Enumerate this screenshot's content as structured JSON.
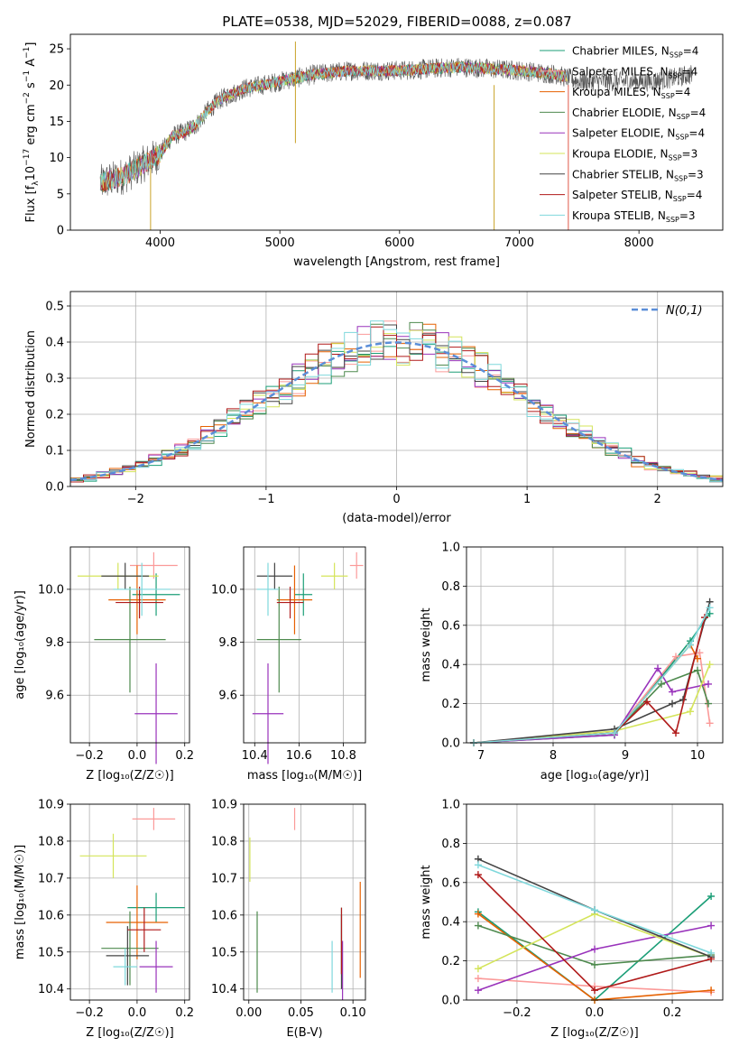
{
  "figure_title": "PLATE=0538, MJD=52029, FIBERID=0088, z=0.087",
  "series": [
    {
      "name": "Chabrier MILES",
      "nssp": "4",
      "color": "#1b9e77"
    },
    {
      "name": "Salpeter MILES",
      "nssp": "4",
      "color": "#fb9a99"
    },
    {
      "name": "Kroupa MILES",
      "nssp": "4",
      "color": "#e66101"
    },
    {
      "name": "Chabrier ELODIE",
      "nssp": "4",
      "color": "#4e8a4e"
    },
    {
      "name": "Salpeter ELODIE",
      "nssp": "4",
      "color": "#9933bb"
    },
    {
      "name": "Kroupa ELODIE",
      "nssp": "3",
      "color": "#d4e45a"
    },
    {
      "name": "Chabrier STELIB",
      "nssp": "3",
      "color": "#444444"
    },
    {
      "name": "Salpeter STELIB",
      "nssp": "4",
      "color": "#b01a1a"
    },
    {
      "name": "Kroupa STELIB",
      "nssp": "3",
      "color": "#7fd8dc"
    }
  ],
  "chart_data": [
    {
      "type": "line",
      "id": "spectrum",
      "xlabel": "wavelength [Angstrom, rest frame]",
      "ylabel": "Flux [f_λ10^-17 erg cm^-2 s^-1 A^-1]",
      "xlim": [
        3250,
        8700
      ],
      "ylim": [
        0,
        27
      ],
      "xticks": [
        4000,
        5000,
        6000,
        7000,
        8000
      ],
      "yticks": [
        0,
        5,
        10,
        15,
        20,
        25
      ],
      "grid": false,
      "legend": "right",
      "continuum": {
        "x": [
          3500,
          3600,
          3700,
          3800,
          3900,
          4000,
          4100,
          4200,
          4300,
          4400,
          4500,
          4700,
          5000,
          5300,
          5600,
          6000,
          6500,
          7000,
          7300,
          7500,
          7800,
          8100,
          8300,
          8450
        ],
        "y": [
          6.5,
          7.0,
          7.5,
          8.5,
          9.5,
          10.5,
          13.0,
          13.5,
          14.5,
          16.5,
          18.0,
          19.5,
          20.5,
          21.5,
          22.0,
          22.0,
          22.5,
          22.0,
          21.5,
          20.5,
          20.5,
          20.5,
          21.0,
          21.5
        ]
      }
    },
    {
      "type": "histogram",
      "id": "residuals",
      "xlabel": "(data-model)/error",
      "ylabel": "Normed distribution",
      "xlim": [
        -2.5,
        2.5
      ],
      "ylim": [
        0,
        0.54
      ],
      "xticks": [
        -2,
        -1,
        0,
        1,
        2
      ],
      "yticks": [
        0.0,
        0.1,
        0.2,
        0.3,
        0.4,
        0.5
      ],
      "grid": true,
      "reference_label": "N(0,1)",
      "reference_color": "#5b8ed8"
    },
    {
      "type": "scatter",
      "id": "age-vs-z",
      "xlabel": "Z [log10(Z/Z⊙)]",
      "ylabel": "age [log10(age/yr)]",
      "xlim": [
        -0.28,
        0.22
      ],
      "ylim": [
        9.42,
        10.16
      ],
      "xticks": [
        -0.2,
        0.0,
        0.2
      ],
      "yticks": [
        9.6,
        9.8,
        10.0
      ],
      "grid": true,
      "points": [
        {
          "series": 0,
          "x": 0.08,
          "y": 9.98,
          "xerr": 0.1,
          "yerr": 0.08
        },
        {
          "series": 1,
          "x": 0.07,
          "y": 10.09,
          "xerr": 0.1,
          "yerr": 0.05
        },
        {
          "series": 2,
          "x": 0.0,
          "y": 9.96,
          "xerr": 0.12,
          "yerr": 0.13
        },
        {
          "series": 3,
          "x": -0.03,
          "y": 9.81,
          "xerr": 0.15,
          "yerr": 0.2
        },
        {
          "series": 4,
          "x": 0.08,
          "y": 9.53,
          "xerr": 0.09,
          "yerr": 0.19
        },
        {
          "series": 5,
          "x": -0.08,
          "y": 10.05,
          "xerr": 0.17,
          "yerr": 0.05
        },
        {
          "series": 6,
          "x": -0.05,
          "y": 10.05,
          "xerr": 0.1,
          "yerr": 0.05
        },
        {
          "series": 7,
          "x": 0.01,
          "y": 9.95,
          "xerr": 0.1,
          "yerr": 0.06
        },
        {
          "series": 8,
          "x": 0.02,
          "y": 10.0,
          "xerr": 0.12,
          "yerr": 0.1
        }
      ]
    },
    {
      "type": "scatter",
      "id": "age-vs-mass",
      "xlabel": "mass [log10(M/M⊙)]",
      "ylabel": "",
      "xlim": [
        10.35,
        10.9
      ],
      "ylim": [
        9.42,
        10.16
      ],
      "xticks": [
        10.4,
        10.6,
        10.8
      ],
      "yticks": [
        9.6,
        9.8,
        10.0
      ],
      "grid": true,
      "points": [
        {
          "series": 0,
          "x": 10.62,
          "y": 9.98,
          "xerr": 0.04,
          "yerr": 0.08
        },
        {
          "series": 1,
          "x": 10.86,
          "y": 10.09,
          "xerr": 0.03,
          "yerr": 0.05
        },
        {
          "series": 2,
          "x": 10.58,
          "y": 9.96,
          "xerr": 0.08,
          "yerr": 0.13
        },
        {
          "series": 3,
          "x": 10.51,
          "y": 9.81,
          "xerr": 0.1,
          "yerr": 0.2
        },
        {
          "series": 4,
          "x": 10.46,
          "y": 9.53,
          "xerr": 0.07,
          "yerr": 0.19
        },
        {
          "series": 5,
          "x": 10.76,
          "y": 10.05,
          "xerr": 0.06,
          "yerr": 0.05
        },
        {
          "series": 6,
          "x": 10.49,
          "y": 10.05,
          "xerr": 0.08,
          "yerr": 0.05
        },
        {
          "series": 7,
          "x": 10.56,
          "y": 9.95,
          "xerr": 0.06,
          "yerr": 0.06
        },
        {
          "series": 8,
          "x": 10.46,
          "y": 10.0,
          "xerr": 0.05,
          "yerr": 0.1
        }
      ]
    },
    {
      "type": "line",
      "id": "weight-vs-age",
      "xlabel": "age [log10(age/yr)]",
      "ylabel": "mass weight",
      "xlim": [
        6.8,
        10.35
      ],
      "ylim": [
        0,
        1.0
      ],
      "xticks": [
        7,
        8,
        9,
        10
      ],
      "yticks": [
        0.0,
        0.2,
        0.4,
        0.6,
        0.8,
        1.0
      ],
      "grid": true,
      "lines": [
        {
          "series": 0,
          "x": [
            6.9,
            8.85,
            9.9,
            10.17
          ],
          "y": [
            0.0,
            0.04,
            0.52,
            0.66
          ]
        },
        {
          "series": 1,
          "x": [
            6.9,
            8.85,
            9.7,
            10.03,
            10.17
          ],
          "y": [
            0.0,
            0.05,
            0.44,
            0.46,
            0.1
          ]
        },
        {
          "series": 2,
          "x": [
            6.9,
            8.85,
            9.9,
            10.0
          ],
          "y": [
            0.0,
            0.05,
            0.5,
            0.43
          ]
        },
        {
          "series": 3,
          "x": [
            6.9,
            8.85,
            9.5,
            10.0,
            10.15
          ],
          "y": [
            0.0,
            0.05,
            0.3,
            0.37,
            0.2
          ]
        },
        {
          "series": 4,
          "x": [
            6.9,
            8.85,
            9.45,
            9.65,
            10.15
          ],
          "y": [
            0.0,
            0.04,
            0.38,
            0.26,
            0.3
          ]
        },
        {
          "series": 5,
          "x": [
            6.9,
            8.85,
            9.9,
            10.17
          ],
          "y": [
            0.0,
            0.06,
            0.16,
            0.4
          ]
        },
        {
          "series": 6,
          "x": [
            6.9,
            8.85,
            9.65,
            9.8,
            10.17
          ],
          "y": [
            0.0,
            0.07,
            0.2,
            0.22,
            0.72
          ]
        },
        {
          "series": 7,
          "x": [
            6.9,
            8.85,
            9.3,
            9.7,
            10.1
          ],
          "y": [
            0.0,
            0.05,
            0.21,
            0.05,
            0.64
          ]
        },
        {
          "series": 8,
          "x": [
            6.9,
            8.85,
            9.9,
            10.17
          ],
          "y": [
            0.0,
            0.05,
            0.5,
            0.69
          ]
        }
      ]
    },
    {
      "type": "scatter",
      "id": "mass-vs-z",
      "xlabel": "Z [log10(Z/Z⊙)]",
      "ylabel": "mass [log10(M/M⊙)]",
      "xlim": [
        -0.28,
        0.22
      ],
      "ylim": [
        10.37,
        10.9
      ],
      "xticks": [
        -0.2,
        0.0,
        0.2
      ],
      "yticks": [
        10.4,
        10.5,
        10.6,
        10.7,
        10.8,
        10.9
      ],
      "grid": true,
      "points": [
        {
          "series": 0,
          "x": 0.08,
          "y": 10.62,
          "xerr": 0.12,
          "yerr": 0.04
        },
        {
          "series": 1,
          "x": 0.07,
          "y": 10.86,
          "xerr": 0.09,
          "yerr": 0.03
        },
        {
          "series": 2,
          "x": 0.0,
          "y": 10.58,
          "xerr": 0.13,
          "yerr": 0.1
        },
        {
          "series": 3,
          "x": -0.03,
          "y": 10.51,
          "xerr": 0.12,
          "yerr": 0.1
        },
        {
          "series": 4,
          "x": 0.08,
          "y": 10.46,
          "xerr": 0.07,
          "yerr": 0.07
        },
        {
          "series": 5,
          "x": -0.1,
          "y": 10.76,
          "xerr": 0.14,
          "yerr": 0.06
        },
        {
          "series": 6,
          "x": -0.04,
          "y": 10.49,
          "xerr": 0.09,
          "yerr": 0.08
        },
        {
          "series": 7,
          "x": 0.03,
          "y": 10.56,
          "xerr": 0.07,
          "yerr": 0.06
        },
        {
          "series": 8,
          "x": -0.05,
          "y": 10.46,
          "xerr": 0.05,
          "yerr": 0.05
        }
      ]
    },
    {
      "type": "scatter",
      "id": "mass-vs-ebv",
      "xlabel": "E(B-V)",
      "ylabel": "",
      "xlim": [
        -0.005,
        0.112
      ],
      "ylim": [
        10.37,
        10.9
      ],
      "xticks": [
        0.0,
        0.05,
        0.1
      ],
      "yticks": [
        10.4,
        10.5,
        10.6,
        10.7,
        10.8,
        10.9
      ],
      "grid": true,
      "points": [
        {
          "series": 0,
          "x": 0.089,
          "y": 10.53,
          "xerr": 0,
          "yerr": 0.09
        },
        {
          "series": 1,
          "x": 0.044,
          "y": 10.86,
          "xerr": 0,
          "yerr": 0.03
        },
        {
          "series": 2,
          "x": 0.107,
          "y": 10.56,
          "xerr": 0,
          "yerr": 0.13
        },
        {
          "series": 3,
          "x": 0.008,
          "y": 10.5,
          "xerr": 0,
          "yerr": 0.11
        },
        {
          "series": 4,
          "x": 0.09,
          "y": 10.45,
          "xerr": 0,
          "yerr": 0.08
        },
        {
          "series": 5,
          "x": 0.001,
          "y": 10.75,
          "xerr": 0,
          "yerr": 0.06
        },
        {
          "series": 6,
          "x": 0.089,
          "y": 10.5,
          "xerr": 0,
          "yerr": 0.1
        },
        {
          "series": 7,
          "x": 0.089,
          "y": 10.53,
          "xerr": 0,
          "yerr": 0.09
        },
        {
          "series": 8,
          "x": 0.08,
          "y": 10.46,
          "xerr": 0,
          "yerr": 0.07
        }
      ]
    },
    {
      "type": "line",
      "id": "weight-vs-z",
      "xlabel": "Z [log10(Z/Z⊙)]",
      "ylabel": "mass weight",
      "xlim": [
        -0.33,
        0.33
      ],
      "ylim": [
        0,
        1.0
      ],
      "xticks": [
        -0.2,
        0.0,
        0.2
      ],
      "yticks": [
        0.0,
        0.2,
        0.4,
        0.6,
        0.8,
        1.0
      ],
      "grid": true,
      "lines": [
        {
          "series": 0,
          "x": [
            -0.3,
            0.0,
            0.3
          ],
          "y": [
            0.45,
            0.0,
            0.53
          ]
        },
        {
          "series": 1,
          "x": [
            -0.3,
            0.0,
            0.3
          ],
          "y": [
            0.11,
            0.07,
            0.04
          ]
        },
        {
          "series": 2,
          "x": [
            -0.3,
            0.0,
            0.3
          ],
          "y": [
            0.44,
            0.0,
            0.05
          ]
        },
        {
          "series": 3,
          "x": [
            -0.3,
            0.0,
            0.3
          ],
          "y": [
            0.38,
            0.18,
            0.23
          ]
        },
        {
          "series": 4,
          "x": [
            -0.3,
            0.0,
            0.3
          ],
          "y": [
            0.05,
            0.26,
            0.38
          ]
        },
        {
          "series": 5,
          "x": [
            -0.3,
            0.0,
            0.3
          ],
          "y": [
            0.16,
            0.44,
            0.22
          ]
        },
        {
          "series": 6,
          "x": [
            -0.3,
            0.0,
            0.3
          ],
          "y": [
            0.72,
            0.46,
            0.22
          ]
        },
        {
          "series": 7,
          "x": [
            -0.3,
            0.0,
            0.3
          ],
          "y": [
            0.64,
            0.05,
            0.21
          ]
        },
        {
          "series": 8,
          "x": [
            -0.3,
            0.0,
            0.3
          ],
          "y": [
            0.69,
            0.46,
            0.24
          ]
        }
      ]
    }
  ]
}
